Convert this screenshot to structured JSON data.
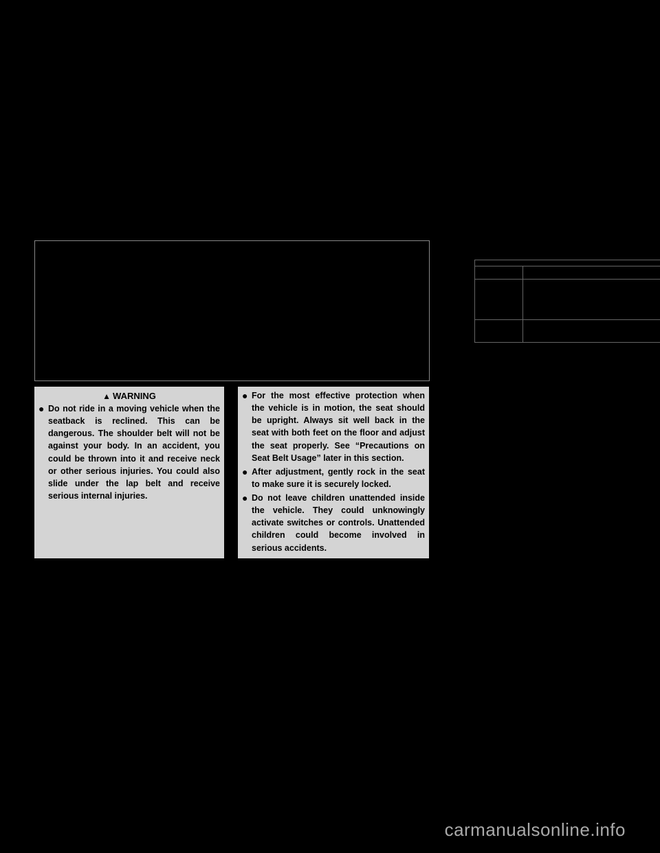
{
  "warning": {
    "header": "WARNING",
    "left_items": [
      "Do not ride in a moving vehicle when the seatback is reclined. This can be dangerous. The shoulder belt will not be against your body. In an accident, you could be thrown into it and receive neck or other serious injuries. You could also slide under the lap belt and receive serious internal injuries."
    ],
    "right_items": [
      "For the most effective protection when the vehicle is in motion, the seat should be upright. Always sit well back in the seat with both feet on the floor and adjust the seat properly. See “Precautions on Seat Belt Usage” later in this section.",
      "After adjustment, gently rock in the seat to make sure it is securely locked.",
      "Do not leave children unattended inside the vehicle. They could unknowingly activate switches or controls. Unattended children could become involved in serious accidents."
    ]
  },
  "watermark": "carmanualsonline.info"
}
